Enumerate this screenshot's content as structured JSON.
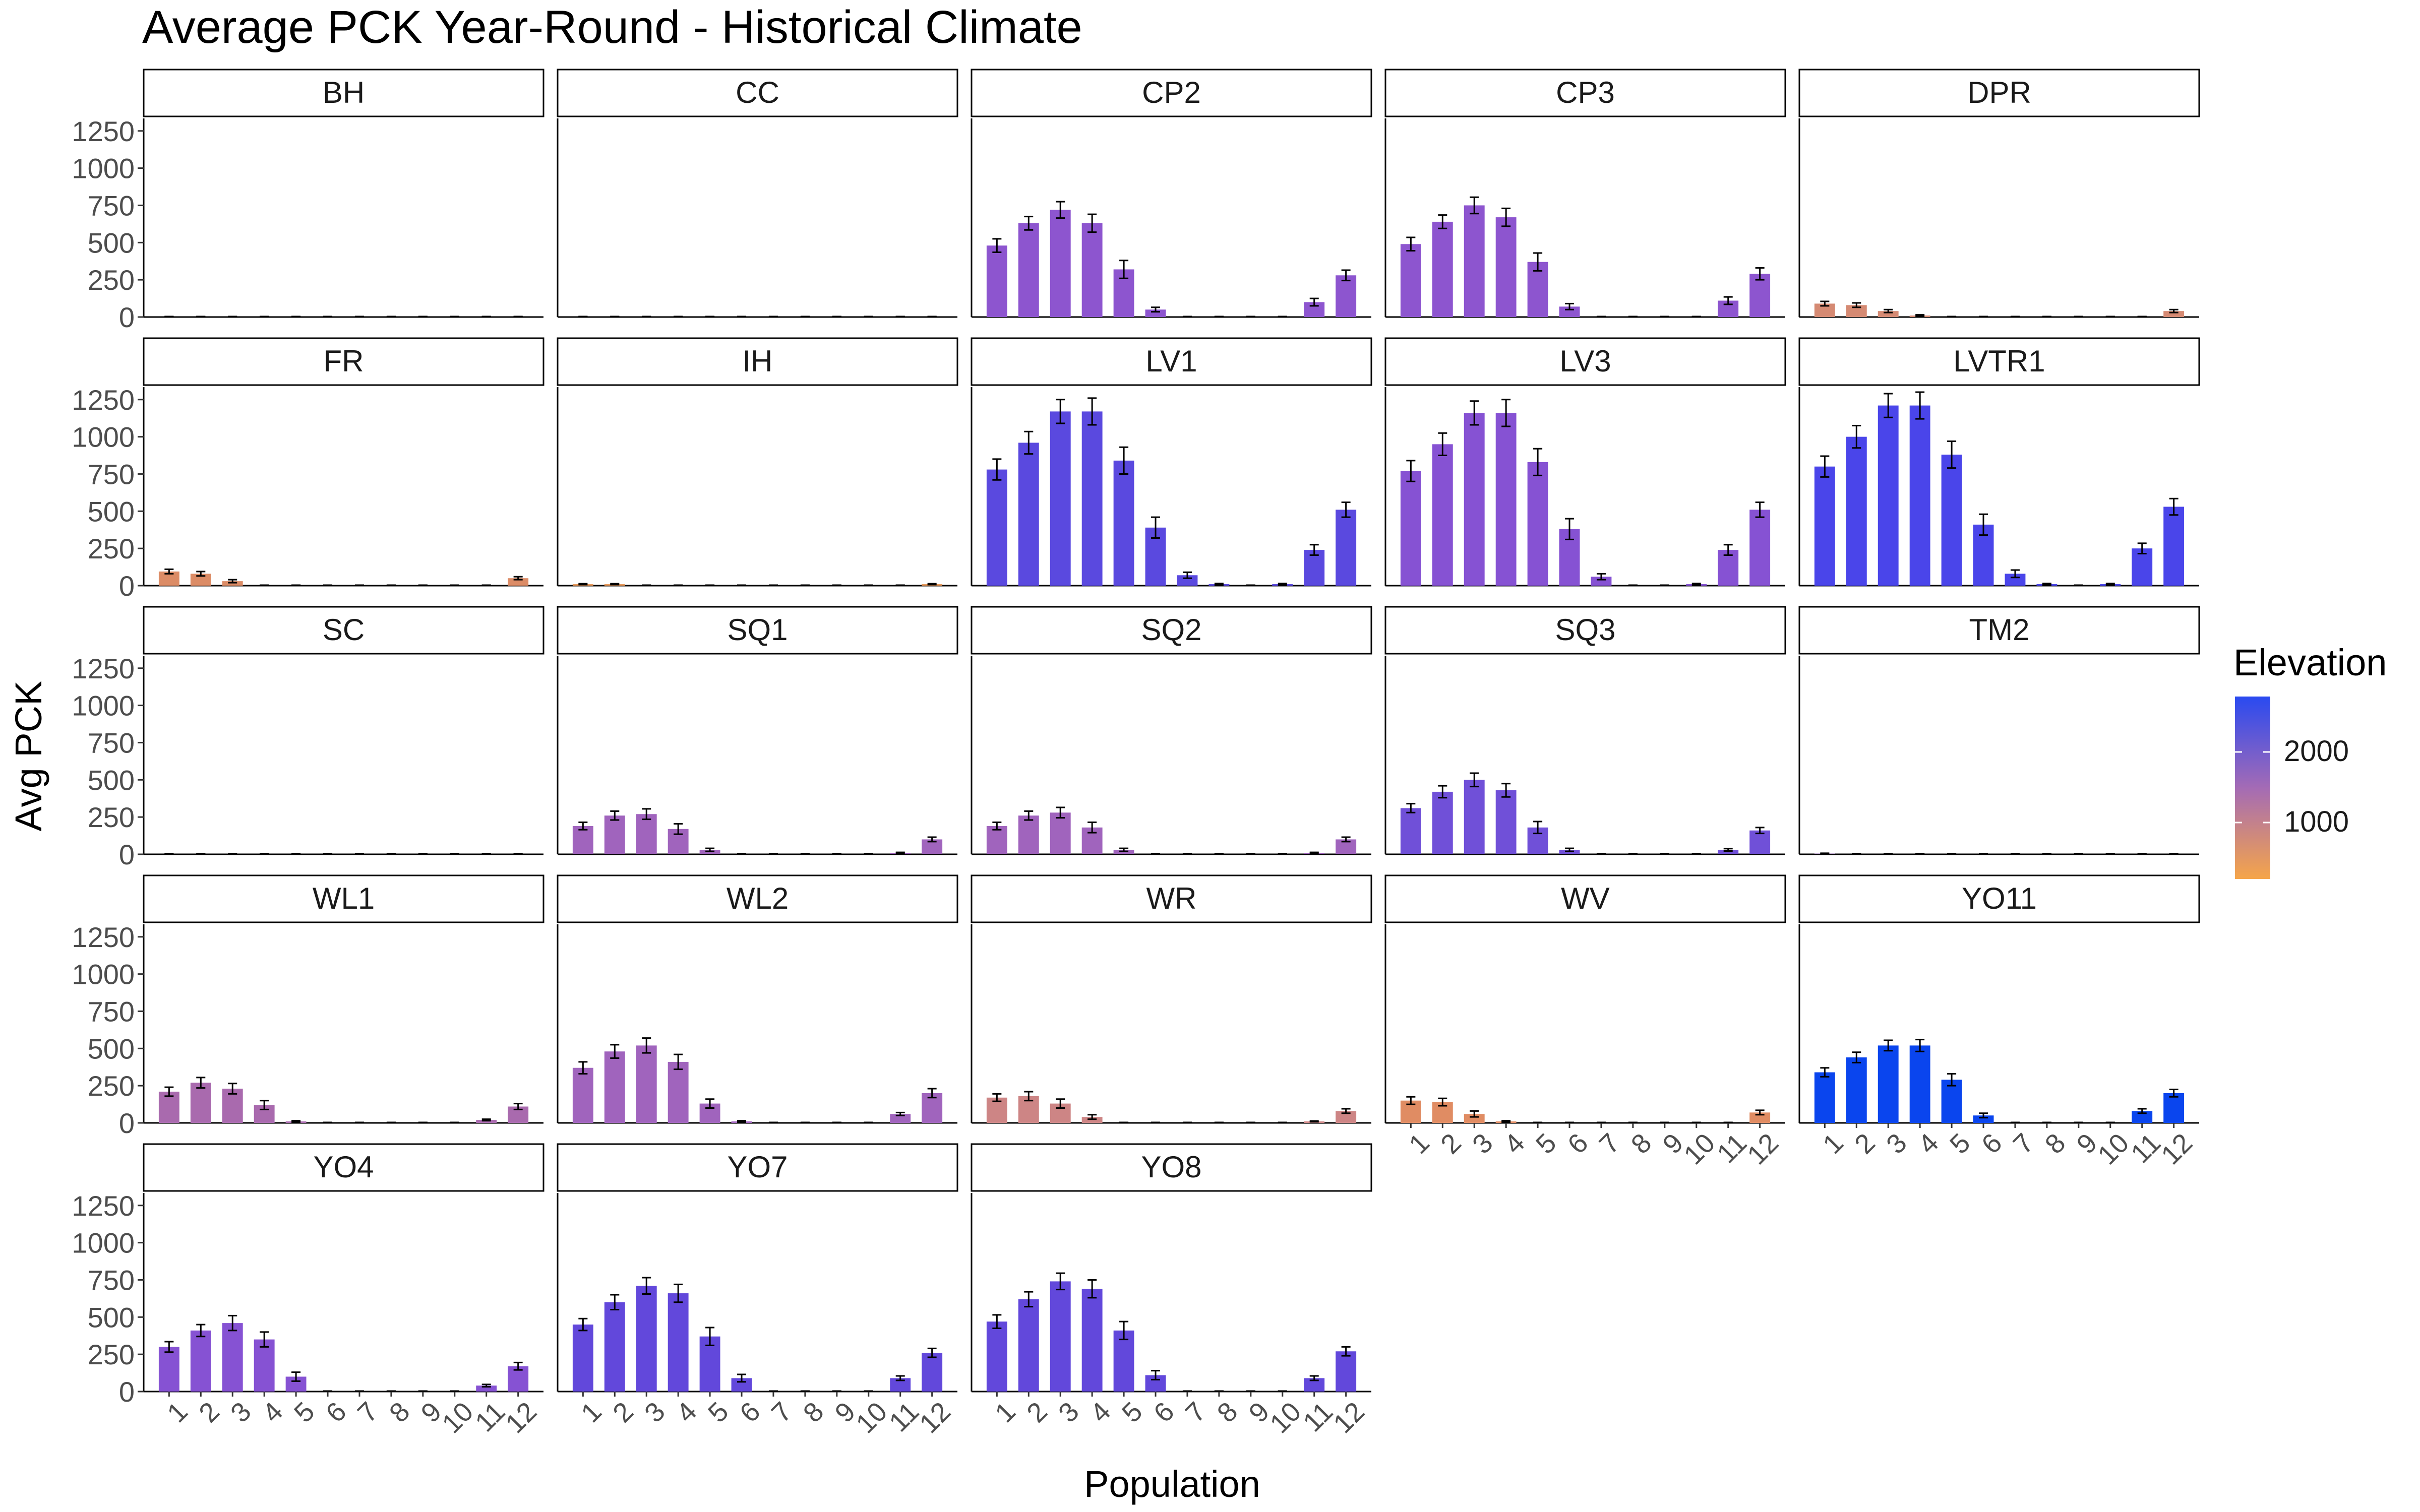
{
  "chart_data": {
    "type": "bar",
    "title": "Average PCK Year-Round - Historical Climate",
    "xlabel": "Population",
    "ylabel": "Avg PCK",
    "ylim": [
      0,
      1300
    ],
    "yticks": [
      0,
      250,
      500,
      750,
      1000,
      1250
    ],
    "categories": [
      "1",
      "2",
      "3",
      "4",
      "5",
      "6",
      "7",
      "8",
      "9",
      "10",
      "11",
      "12"
    ],
    "facet_layout": "5 columns, 5 rows, free x axis labels on bottom-most panel of each column",
    "grid": false,
    "legend": {
      "title": "Elevation",
      "position": "right",
      "type": "color gradient",
      "labels": [
        "2000",
        "1000"
      ],
      "low_color": "#f5a54a",
      "high_color": "#2a4af0"
    },
    "colors": {
      "BH": "#d48a6a",
      "CC": "#c28a8e",
      "CP2": "#8d55cf",
      "CP3": "#8d55cf",
      "DPR": "#d58a73",
      "FR": "#dc8c66",
      "IH": "#e89a5c",
      "LV1": "#5a49df",
      "LV3": "#8652d3",
      "LVTR1": "#4a45ea",
      "SC": "#c58c88",
      "SQ1": "#a064bd",
      "SQ2": "#a064bd",
      "SQ3": "#7050d8",
      "TM2": "#9a6ab8",
      "WL1": "#a96aae",
      "WL2": "#a064bd",
      "WR": "#cd8585",
      "WV": "#e08c63",
      "YO11": "#0a45ee",
      "YO4": "#8652d3",
      "YO7": "#6248db",
      "YO8": "#6248db"
    },
    "series": [
      {
        "name": "BH",
        "values": [
          0,
          0,
          0,
          0,
          0,
          0,
          0,
          0,
          0,
          0,
          0,
          0
        ],
        "errors": [
          0,
          0,
          0,
          0,
          0,
          0,
          0,
          0,
          0,
          0,
          0,
          0
        ]
      },
      {
        "name": "CC",
        "values": [
          0,
          0,
          0,
          0,
          0,
          0,
          0,
          0,
          0,
          0,
          0,
          0
        ],
        "errors": [
          0,
          0,
          0,
          0,
          0,
          0,
          0,
          0,
          0,
          0,
          0,
          0
        ]
      },
      {
        "name": "CP2",
        "values": [
          480,
          630,
          720,
          630,
          320,
          50,
          0,
          0,
          0,
          0,
          100,
          280
        ],
        "errors": [
          45,
          45,
          55,
          60,
          60,
          15,
          0,
          0,
          0,
          0,
          25,
          35
        ]
      },
      {
        "name": "CP3",
        "values": [
          490,
          640,
          750,
          670,
          370,
          70,
          0,
          0,
          0,
          0,
          110,
          290
        ],
        "errors": [
          45,
          45,
          55,
          60,
          60,
          20,
          0,
          0,
          0,
          0,
          25,
          40
        ]
      },
      {
        "name": "DPR",
        "values": [
          90,
          80,
          40,
          10,
          0,
          0,
          0,
          0,
          0,
          0,
          0,
          40
        ],
        "errors": [
          15,
          15,
          10,
          5,
          0,
          0,
          0,
          0,
          0,
          0,
          0,
          10
        ]
      },
      {
        "name": "FR",
        "values": [
          95,
          80,
          30,
          0,
          0,
          0,
          0,
          0,
          0,
          0,
          0,
          50
        ],
        "errors": [
          15,
          15,
          10,
          0,
          0,
          0,
          0,
          0,
          0,
          0,
          0,
          10
        ]
      },
      {
        "name": "IH",
        "values": [
          10,
          10,
          0,
          0,
          0,
          0,
          0,
          0,
          0,
          0,
          0,
          10
        ],
        "errors": [
          3,
          3,
          0,
          0,
          0,
          0,
          0,
          0,
          0,
          0,
          0,
          3
        ]
      },
      {
        "name": "LV1",
        "values": [
          780,
          960,
          1170,
          1170,
          840,
          390,
          70,
          10,
          0,
          10,
          240,
          510
        ],
        "errors": [
          70,
          75,
          80,
          90,
          90,
          70,
          20,
          5,
          0,
          5,
          35,
          50
        ]
      },
      {
        "name": "LV3",
        "values": [
          770,
          950,
          1160,
          1160,
          830,
          380,
          60,
          0,
          0,
          10,
          240,
          510
        ],
        "errors": [
          70,
          75,
          80,
          90,
          90,
          70,
          20,
          0,
          0,
          5,
          35,
          50
        ]
      },
      {
        "name": "LVTR1",
        "values": [
          800,
          1000,
          1210,
          1210,
          880,
          410,
          80,
          10,
          0,
          10,
          250,
          530
        ],
        "errors": [
          70,
          75,
          80,
          90,
          90,
          70,
          25,
          5,
          0,
          5,
          35,
          55
        ]
      },
      {
        "name": "SC",
        "values": [
          0,
          0,
          0,
          0,
          0,
          0,
          0,
          0,
          0,
          0,
          0,
          0
        ],
        "errors": [
          0,
          0,
          0,
          0,
          0,
          0,
          0,
          0,
          0,
          0,
          0,
          0
        ]
      },
      {
        "name": "SQ1",
        "values": [
          190,
          260,
          270,
          170,
          30,
          0,
          0,
          0,
          0,
          0,
          10,
          100
        ],
        "errors": [
          25,
          30,
          35,
          35,
          10,
          0,
          0,
          0,
          0,
          0,
          3,
          15
        ]
      },
      {
        "name": "SQ2",
        "values": [
          190,
          260,
          280,
          180,
          30,
          0,
          0,
          0,
          0,
          0,
          10,
          100
        ],
        "errors": [
          25,
          30,
          35,
          35,
          10,
          0,
          0,
          0,
          0,
          0,
          3,
          15
        ]
      },
      {
        "name": "SQ3",
        "values": [
          310,
          420,
          500,
          430,
          180,
          30,
          0,
          0,
          0,
          0,
          30,
          160
        ],
        "errors": [
          30,
          40,
          45,
          45,
          40,
          10,
          0,
          0,
          0,
          0,
          8,
          20
        ]
      },
      {
        "name": "TM2",
        "values": [
          5,
          0,
          0,
          0,
          0,
          0,
          0,
          0,
          0,
          0,
          0,
          0
        ],
        "errors": [
          2,
          0,
          0,
          0,
          0,
          0,
          0,
          0,
          0,
          0,
          0,
          0
        ]
      },
      {
        "name": "WL1",
        "values": [
          210,
          270,
          230,
          120,
          10,
          0,
          0,
          0,
          0,
          0,
          20,
          110
        ],
        "errors": [
          30,
          35,
          35,
          30,
          5,
          0,
          0,
          0,
          0,
          0,
          5,
          20
        ]
      },
      {
        "name": "WL2",
        "values": [
          370,
          480,
          520,
          410,
          130,
          10,
          0,
          0,
          0,
          0,
          60,
          200
        ],
        "errors": [
          40,
          45,
          50,
          50,
          30,
          5,
          0,
          0,
          0,
          0,
          10,
          30
        ]
      },
      {
        "name": "WR",
        "values": [
          170,
          180,
          130,
          40,
          0,
          0,
          0,
          0,
          0,
          0,
          10,
          80
        ],
        "errors": [
          25,
          30,
          30,
          15,
          0,
          0,
          0,
          0,
          0,
          0,
          3,
          15
        ]
      },
      {
        "name": "WV",
        "values": [
          150,
          140,
          60,
          10,
          0,
          0,
          0,
          0,
          0,
          0,
          0,
          70
        ],
        "errors": [
          25,
          25,
          20,
          5,
          0,
          0,
          0,
          0,
          0,
          0,
          0,
          15
        ]
      },
      {
        "name": "YO11",
        "values": [
          340,
          440,
          520,
          520,
          290,
          50,
          0,
          0,
          0,
          0,
          80,
          200
        ],
        "errors": [
          30,
          35,
          35,
          40,
          40,
          15,
          0,
          0,
          0,
          0,
          15,
          25
        ]
      },
      {
        "name": "YO4",
        "values": [
          300,
          410,
          460,
          350,
          100,
          0,
          0,
          0,
          0,
          0,
          40,
          170
        ],
        "errors": [
          35,
          40,
          50,
          50,
          30,
          0,
          0,
          0,
          0,
          0,
          8,
          25
        ]
      },
      {
        "name": "YO7",
        "values": [
          450,
          600,
          710,
          660,
          370,
          90,
          0,
          0,
          0,
          0,
          90,
          260
        ],
        "errors": [
          40,
          50,
          55,
          60,
          60,
          25,
          0,
          0,
          0,
          0,
          15,
          30
        ]
      },
      {
        "name": "YO8",
        "values": [
          470,
          620,
          740,
          690,
          410,
          110,
          0,
          0,
          0,
          0,
          90,
          270
        ],
        "errors": [
          45,
          50,
          55,
          60,
          60,
          30,
          0,
          0,
          0,
          0,
          15,
          30
        ]
      }
    ]
  }
}
